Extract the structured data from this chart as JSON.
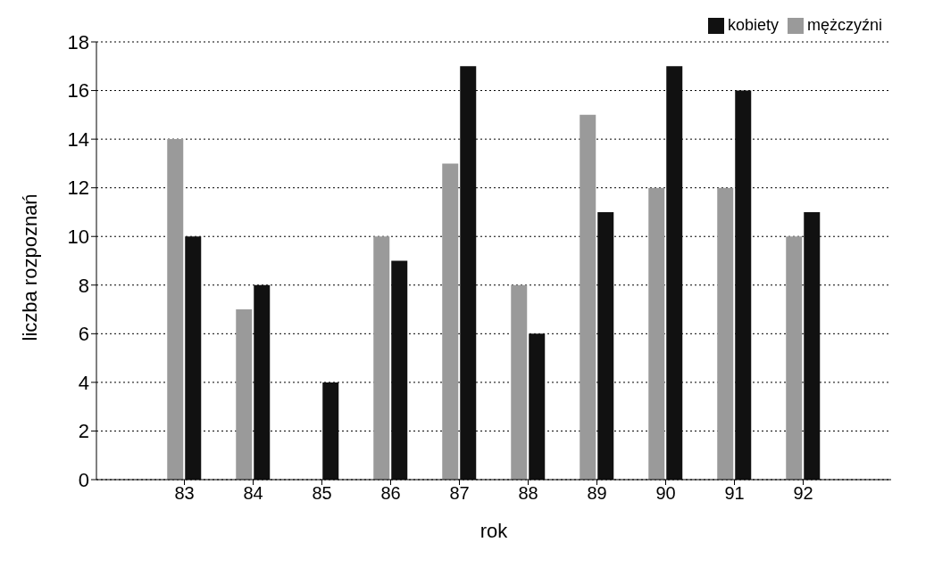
{
  "chart_data": {
    "type": "bar",
    "xlabel": "rok",
    "ylabel": "liczba rozpoznań",
    "categories": [
      "83",
      "84",
      "85",
      "86",
      "87",
      "88",
      "89",
      "90",
      "91",
      "92"
    ],
    "series": [
      {
        "name": "mężczyźni",
        "color": "#9a9a9a",
        "values": [
          14,
          7,
          0,
          10,
          13,
          8,
          15,
          12,
          12,
          10
        ]
      },
      {
        "name": "kobiety",
        "color": "#111111",
        "values": [
          10,
          8,
          4,
          9,
          17,
          6,
          11,
          17,
          16,
          11
        ]
      }
    ],
    "ylim": [
      0,
      18
    ],
    "yticks": [
      0,
      2,
      4,
      6,
      8,
      10,
      12,
      14,
      16,
      18
    ],
    "grid": "y",
    "legend": "top right"
  }
}
